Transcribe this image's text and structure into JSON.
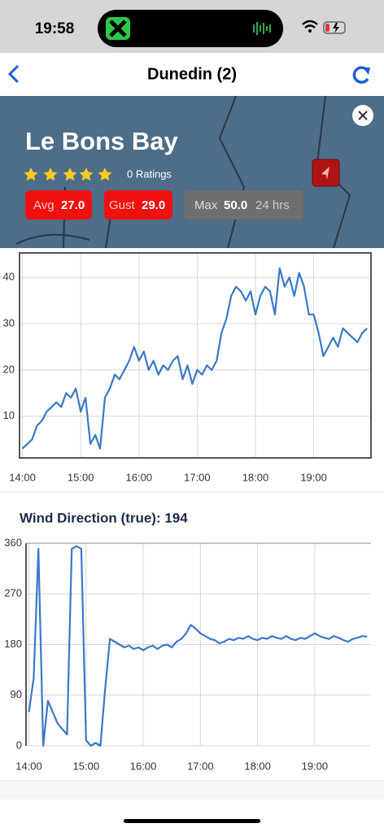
{
  "status": {
    "time": "19:58"
  },
  "header": {
    "title": "Dunedin (2)"
  },
  "station": {
    "name": "Le Bons Bay",
    "ratings": "0 Ratings",
    "avg": {
      "label": "Avg",
      "value": "27.0"
    },
    "gust": {
      "label": "Gust",
      "value": "29.0"
    },
    "max": {
      "label": "Max",
      "value": "50.0",
      "period": "24 hrs"
    }
  },
  "chart_data": [
    {
      "type": "line",
      "xlim": [
        "13:57",
        "19:59"
      ],
      "ylim": [
        1,
        45.3
      ],
      "yticks": [
        10,
        20,
        30,
        40
      ],
      "xticks": [
        "14:00",
        "15:00",
        "16:00",
        "17:00",
        "18:00",
        "19:00"
      ],
      "grid": true,
      "x": [
        "14:00",
        "14:05",
        "14:10",
        "14:15",
        "14:20",
        "14:25",
        "14:30",
        "14:35",
        "14:40",
        "14:45",
        "14:50",
        "14:55",
        "15:00",
        "15:05",
        "15:10",
        "15:15",
        "15:20",
        "15:25",
        "15:30",
        "15:35",
        "15:40",
        "15:45",
        "15:50",
        "15:55",
        "16:00",
        "16:05",
        "16:10",
        "16:15",
        "16:20",
        "16:25",
        "16:30",
        "16:35",
        "16:40",
        "16:45",
        "16:50",
        "16:55",
        "17:00",
        "17:05",
        "17:10",
        "17:15",
        "17:20",
        "17:25",
        "17:30",
        "17:35",
        "17:40",
        "17:45",
        "17:50",
        "17:55",
        "18:00",
        "18:05",
        "18:10",
        "18:15",
        "18:20",
        "18:25",
        "18:30",
        "18:35",
        "18:40",
        "18:45",
        "18:50",
        "18:55",
        "19:00",
        "19:05",
        "19:10",
        "19:15",
        "19:20",
        "19:25",
        "19:30",
        "19:35",
        "19:40",
        "19:45",
        "19:50",
        "19:55"
      ],
      "series": [
        {
          "color": "#3b78c9",
          "values": [
            3,
            4,
            5,
            8,
            9,
            11,
            12,
            13,
            12,
            15,
            14,
            16,
            11,
            14,
            4,
            6,
            3,
            14,
            16,
            19,
            18,
            20,
            22,
            25,
            22,
            24,
            20,
            22,
            19,
            21,
            20,
            22,
            23,
            18,
            21,
            17,
            20,
            19,
            21,
            20,
            22,
            28,
            31,
            36,
            38,
            37,
            35,
            37,
            32,
            36,
            38,
            37,
            32,
            42,
            38,
            40,
            36,
            41,
            38,
            32,
            32,
            28,
            23,
            25,
            27,
            25,
            29,
            28,
            27,
            26,
            28,
            29
          ]
        }
      ]
    },
    {
      "type": "line",
      "title": "Wind Direction (true): 194",
      "xlim": [
        "13:57",
        "19:59"
      ],
      "ylim": [
        0,
        360
      ],
      "yticks": [
        0,
        90,
        180,
        270,
        360
      ],
      "xticks": [
        "14:00",
        "15:00",
        "16:00",
        "17:00",
        "18:00",
        "19:00"
      ],
      "grid": true,
      "x": [
        "14:00",
        "14:05",
        "14:10",
        "14:15",
        "14:20",
        "14:25",
        "14:30",
        "14:35",
        "14:40",
        "14:45",
        "14:50",
        "14:55",
        "15:00",
        "15:05",
        "15:10",
        "15:15",
        "15:20",
        "15:25",
        "15:30",
        "15:35",
        "15:40",
        "15:45",
        "15:50",
        "15:55",
        "16:00",
        "16:05",
        "16:10",
        "16:15",
        "16:20",
        "16:25",
        "16:30",
        "16:35",
        "16:40",
        "16:45",
        "16:50",
        "16:55",
        "17:00",
        "17:05",
        "17:10",
        "17:15",
        "17:20",
        "17:25",
        "17:30",
        "17:35",
        "17:40",
        "17:45",
        "17:50",
        "17:55",
        "18:00",
        "18:05",
        "18:10",
        "18:15",
        "18:20",
        "18:25",
        "18:30",
        "18:35",
        "18:40",
        "18:45",
        "18:50",
        "18:55",
        "19:00",
        "19:05",
        "19:10",
        "19:15",
        "19:20",
        "19:25",
        "19:30",
        "19:35",
        "19:40",
        "19:45",
        "19:50",
        "19:55"
      ],
      "series": [
        {
          "color": "#3b78c9",
          "values": [
            60,
            120,
            350,
            0,
            80,
            60,
            40,
            30,
            20,
            350,
            355,
            350,
            10,
            0,
            5,
            0,
            100,
            190,
            185,
            180,
            175,
            178,
            172,
            175,
            170,
            175,
            178,
            172,
            178,
            180,
            175,
            185,
            190,
            200,
            215,
            208,
            200,
            195,
            190,
            188,
            182,
            185,
            190,
            188,
            192,
            190,
            195,
            190,
            188,
            192,
            190,
            195,
            192,
            190,
            195,
            190,
            188,
            192,
            190,
            195,
            200,
            195,
            192,
            190,
            195,
            192,
            188,
            185,
            190,
            192,
            195,
            194
          ]
        }
      ]
    }
  ]
}
